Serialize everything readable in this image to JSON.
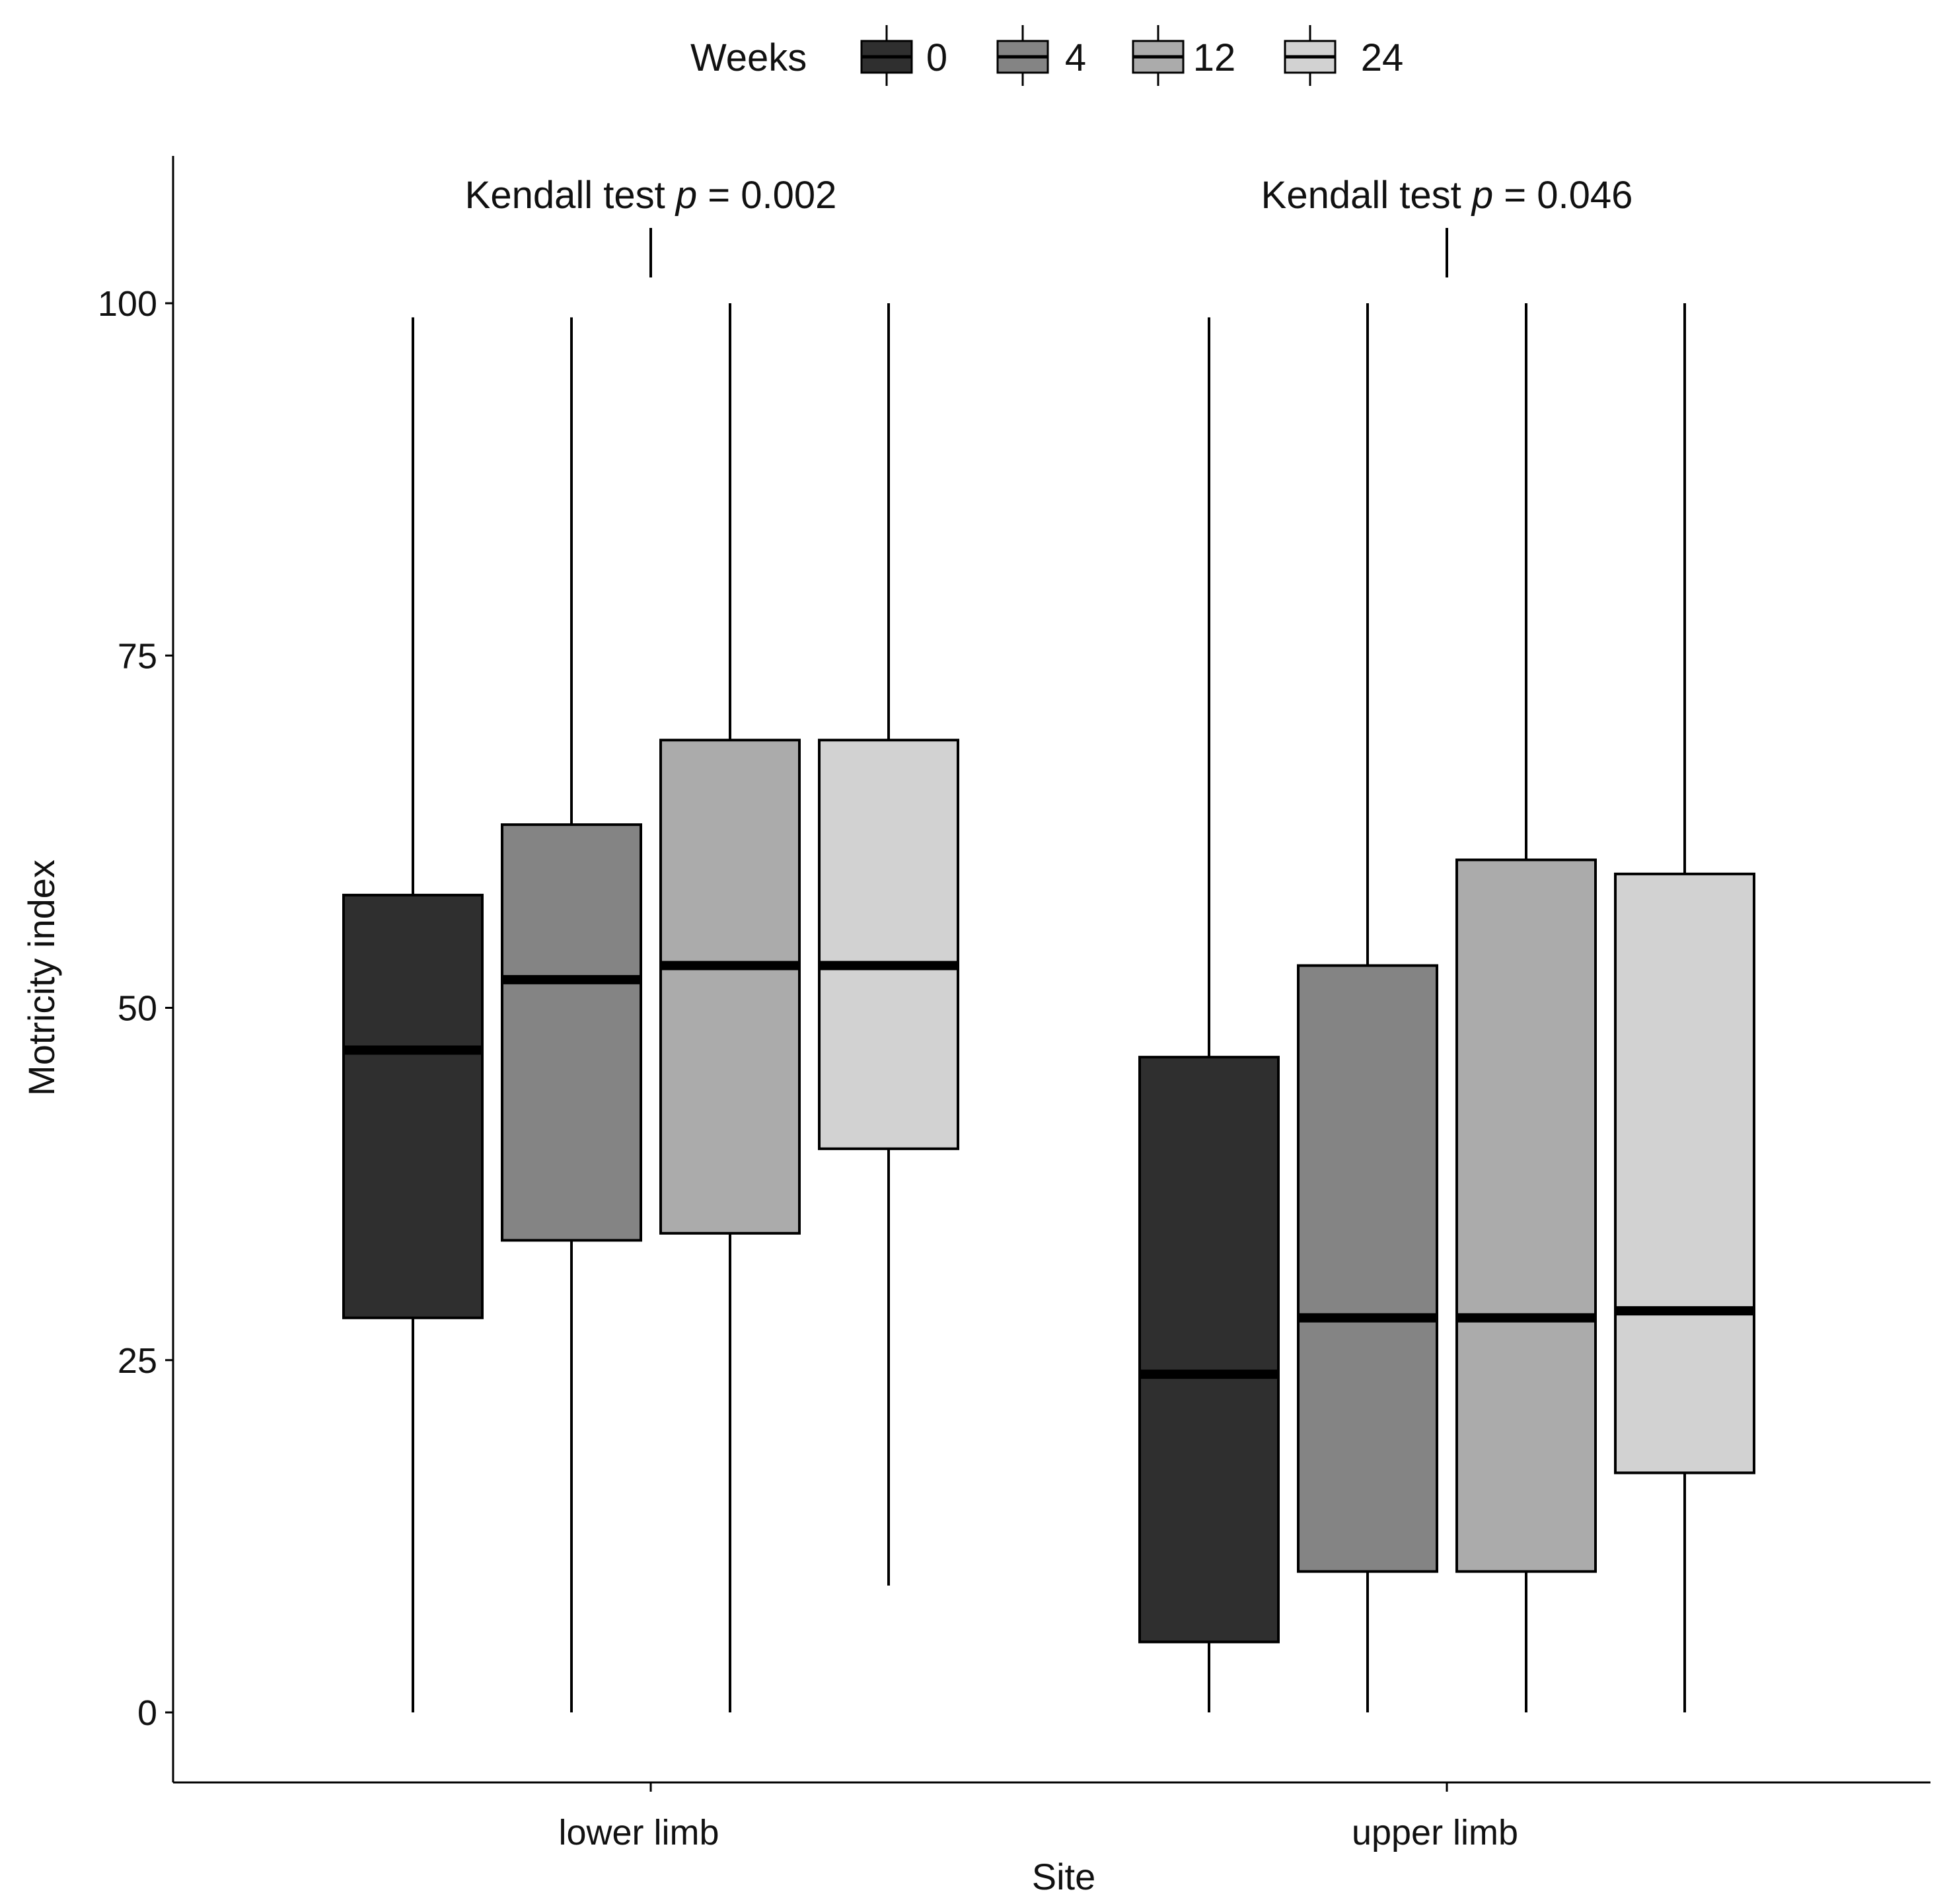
{
  "chart_data": {
    "type": "boxplot",
    "xlabel": "Site",
    "ylabel": "Motricity index",
    "ylim": [
      -5,
      110
    ],
    "yticks": [
      0,
      25,
      50,
      75,
      100
    ],
    "grid": false,
    "legend": {
      "title": "Weeks",
      "position": "top",
      "entries": [
        "0",
        "4",
        "12",
        "24"
      ],
      "colors": [
        "#2f2f2f",
        "#848484",
        "#ababab",
        "#d2d2d2"
      ]
    },
    "categories": [
      "lower limb",
      "upper limb"
    ],
    "groups": [
      {
        "site": "lower limb",
        "annotation": {
          "test": "Kendall test",
          "p_label": "p",
          "p_value": "= 0.002"
        },
        "boxes": [
          {
            "week": "0",
            "min": 0,
            "q1": 28,
            "median": 47,
            "q3": 58,
            "max": 99
          },
          {
            "week": "4",
            "min": 0,
            "q1": 33.5,
            "median": 52,
            "q3": 63,
            "max": 99
          },
          {
            "week": "12",
            "min": 0,
            "q1": 34,
            "median": 53,
            "q3": 69,
            "max": 100
          },
          {
            "week": "24",
            "min": 9,
            "q1": 40,
            "median": 53,
            "q3": 69,
            "max": 100
          }
        ]
      },
      {
        "site": "upper limb",
        "annotation": {
          "test": "Kendall test",
          "p_label": "p",
          "p_value": "= 0.046"
        },
        "boxes": [
          {
            "week": "0",
            "min": 0,
            "q1": 5,
            "median": 24,
            "q3": 46.5,
            "max": 99
          },
          {
            "week": "4",
            "min": 0,
            "q1": 10,
            "median": 28,
            "q3": 53,
            "max": 100
          },
          {
            "week": "12",
            "min": 0,
            "q1": 10,
            "median": 28,
            "q3": 60.5,
            "max": 100
          },
          {
            "week": "24",
            "min": 0,
            "q1": 17,
            "median": 28.5,
            "q3": 59.5,
            "max": 100
          }
        ]
      }
    ]
  }
}
